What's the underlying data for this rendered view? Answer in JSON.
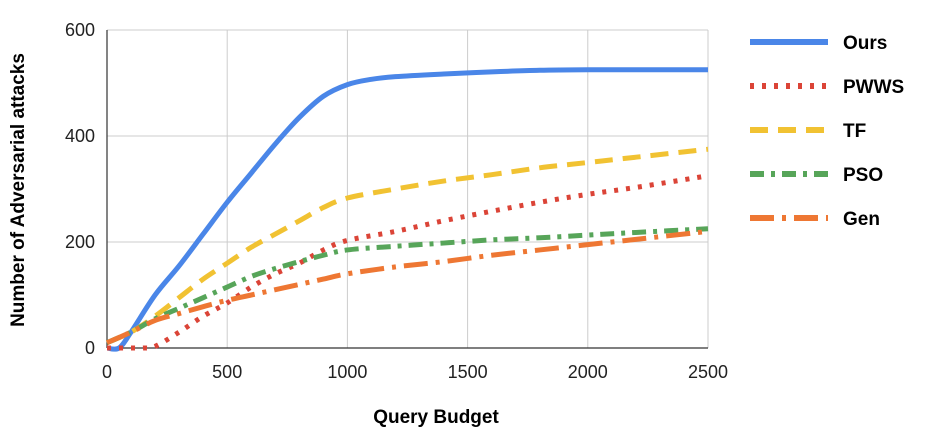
{
  "chart_data": {
    "type": "line",
    "title": "",
    "xlabel": "Query Budget",
    "ylabel": "Number of Adversarial attacks",
    "xlim": [
      0,
      2500
    ],
    "ylim": [
      0,
      600
    ],
    "xticks": [
      "0",
      "500",
      "1000",
      "1500",
      "2000",
      "2500"
    ],
    "yticks": [
      "0",
      "200",
      "400",
      "600"
    ],
    "grid": true,
    "legend_position": "right",
    "series": [
      {
        "name": "Ours",
        "color": "#4a86e8",
        "style": "solid",
        "x": [
          0,
          50,
          100,
          200,
          300,
          400,
          500,
          600,
          700,
          800,
          900,
          1000,
          1100,
          1200,
          1400,
          1600,
          1800,
          2000,
          2200,
          2500
        ],
        "y": [
          0,
          0,
          30,
          100,
          155,
          215,
          275,
          330,
          385,
          435,
          475,
          497,
          507,
          512,
          517,
          521,
          524,
          525,
          525,
          525
        ]
      },
      {
        "name": "PWWS",
        "color": "#db4437",
        "style": "dotted",
        "x": [
          0,
          100,
          150,
          200,
          300,
          400,
          500,
          600,
          700,
          800,
          900,
          1000,
          1200,
          1400,
          1600,
          1800,
          2000,
          2200,
          2500
        ],
        "y": [
          0,
          0,
          0,
          3,
          30,
          60,
          85,
          115,
          140,
          160,
          185,
          203,
          220,
          240,
          258,
          275,
          290,
          303,
          325
        ]
      },
      {
        "name": "TF",
        "color": "#f1c232",
        "style": "dashed",
        "x": [
          0,
          100,
          200,
          300,
          400,
          500,
          600,
          700,
          800,
          900,
          1000,
          1200,
          1400,
          1600,
          1800,
          2000,
          2200,
          2500
        ],
        "y": [
          10,
          30,
          60,
          95,
          130,
          160,
          190,
          215,
          240,
          265,
          283,
          300,
          315,
          327,
          340,
          350,
          360,
          375
        ]
      },
      {
        "name": "PSO",
        "color": "#57a559",
        "style": "dashdot",
        "x": [
          0,
          100,
          200,
          300,
          400,
          500,
          600,
          700,
          800,
          900,
          1000,
          1200,
          1400,
          1600,
          1800,
          2000,
          2200,
          2500
        ],
        "y": [
          10,
          30,
          55,
          75,
          95,
          115,
          135,
          150,
          163,
          175,
          185,
          192,
          198,
          204,
          208,
          213,
          218,
          225
        ]
      },
      {
        "name": "Gen",
        "color": "#ee7733",
        "style": "longdashdot",
        "x": [
          0,
          100,
          200,
          300,
          400,
          500,
          600,
          700,
          800,
          900,
          1000,
          1200,
          1400,
          1600,
          1800,
          2000,
          2200,
          2500
        ],
        "y": [
          10,
          30,
          52,
          65,
          78,
          90,
          100,
          110,
          120,
          130,
          140,
          153,
          163,
          175,
          185,
          195,
          205,
          220
        ]
      }
    ]
  }
}
